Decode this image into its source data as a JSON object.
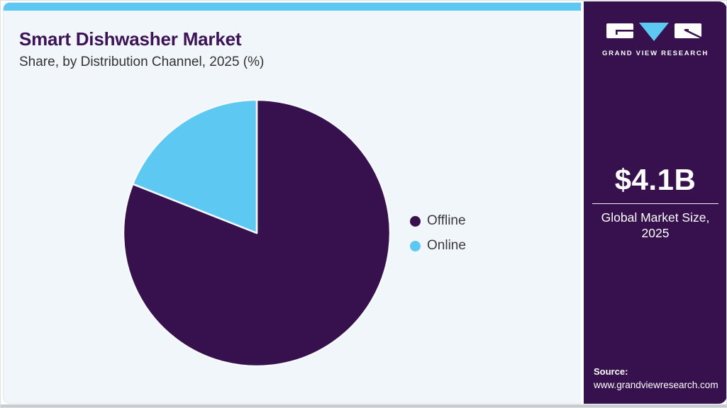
{
  "page": {
    "background": "#ffffff",
    "panel_bg": "#f1f6fa",
    "accent_blue": "#5dc9f3",
    "brand_purple": "#36114d",
    "bottom_strip": "#c8ccd0"
  },
  "header": {
    "title": "Smart Dishwasher Market",
    "subtitle": "Share, by Distribution Channel, 2025 (%)"
  },
  "chart_data": {
    "type": "pie",
    "title": "Smart Dishwasher Market Share, by Distribution Channel, 2025 (%)",
    "categories": [
      "Offline",
      "Online"
    ],
    "values": [
      81,
      19
    ],
    "unit": "percent",
    "slice_colors": [
      "#36114d",
      "#5dc9f3"
    ],
    "legend_position": "right",
    "start_angle": "top",
    "direction": "clockwise"
  },
  "sidebar": {
    "brand": "GRAND VIEW RESEARCH",
    "market_size_value": "$4.1B",
    "market_size_label": "Global Market Size, 2025",
    "source_label": "Source:",
    "source_url": "www.grandviewresearch.com"
  }
}
